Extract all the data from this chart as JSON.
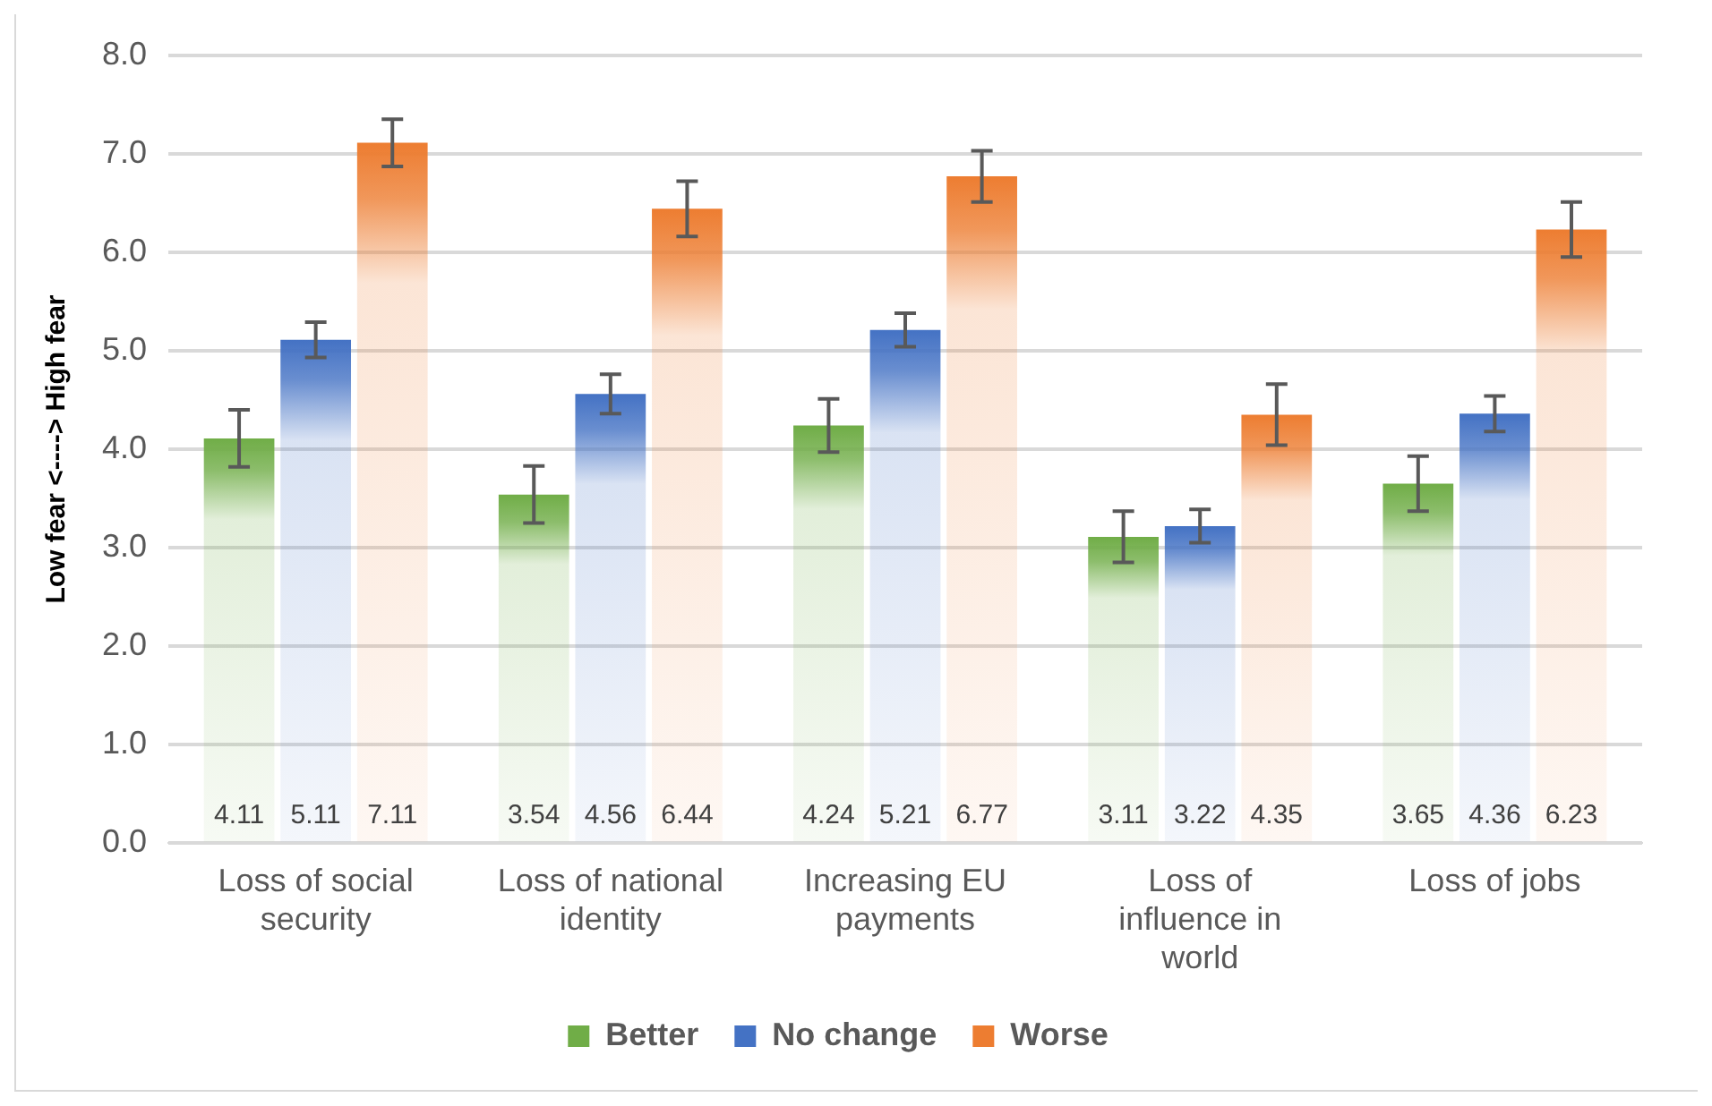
{
  "chart_data": {
    "type": "bar",
    "ylabel": "Low fear <----> High fear",
    "categories": [
      "Loss of social security",
      "Loss of national identity",
      "Increasing EU payments",
      "Loss of influence in world",
      "Loss of jobs"
    ],
    "series": [
      {
        "name": "Better",
        "color": "#70ad47",
        "values": [
          4.11,
          3.54,
          4.24,
          3.11,
          3.65
        ],
        "errors": [
          0.29,
          0.29,
          0.27,
          0.26,
          0.28
        ]
      },
      {
        "name": "No change",
        "color": "#4472c4",
        "values": [
          5.11,
          4.56,
          5.21,
          3.22,
          4.36
        ],
        "errors": [
          0.18,
          0.2,
          0.17,
          0.17,
          0.18
        ]
      },
      {
        "name": "Worse",
        "color": "#ed7d31",
        "values": [
          7.11,
          6.44,
          6.77,
          4.35,
          6.23
        ],
        "errors": [
          0.24,
          0.28,
          0.26,
          0.31,
          0.28
        ]
      }
    ],
    "ylim": [
      0,
      8
    ],
    "yticks": [
      {
        "value": 0,
        "label": "0.0"
      },
      {
        "value": 1,
        "label": "1.0"
      },
      {
        "value": 2,
        "label": "2.0"
      },
      {
        "value": 3,
        "label": "3.0"
      },
      {
        "value": 4,
        "label": "4.0"
      },
      {
        "value": 5,
        "label": "5.0"
      },
      {
        "value": 6,
        "label": "6.0"
      },
      {
        "value": 7,
        "label": "7.0"
      },
      {
        "value": 8,
        "label": "8.0"
      }
    ],
    "grid": "y",
    "legend": "bottom",
    "data_labels": true
  }
}
